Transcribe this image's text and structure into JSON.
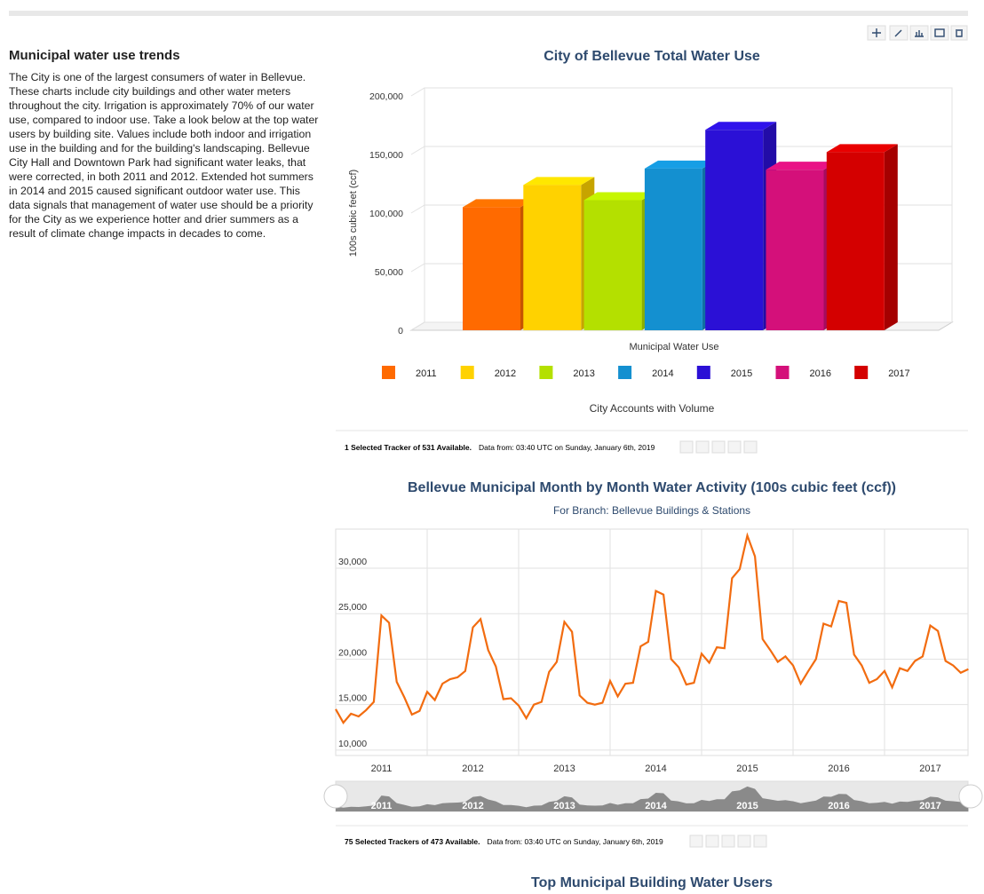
{
  "article": {
    "heading": "Municipal water use trends",
    "paragraph": "The City is one of the largest consumers of water in Bellevue. These charts include city buildings and other water meters throughout the city. Irrigation is approximately 70% of our water use, compared to indoor use. Take a look below at the top water users by building site. Values include both indoor and irrigation use in the building and for the building's landscaping. Bellevue City Hall and Downtown Park had significant water leaks, that were corrected, in both 2011 and 2012. Extended hot summers in 2014 and 2015 caused significant outdoor water use. This data signals that management of water use should be a priority for the City as we experience hotter and drier summers as a result of climate change impacts in decades to come."
  },
  "chart_data": [
    {
      "type": "bar",
      "title": "City of Bellevue Total Water Use",
      "y_label": "100s cubic feet (ccf)",
      "categories": [
        "Municipal Water Use"
      ],
      "caption": "City Accounts with Volume",
      "ylim": [
        0,
        200000
      ],
      "yticks": [
        0,
        {
          "value": 50000,
          "label": "50,000"
        },
        {
          "value": 100000,
          "label": "100,000"
        },
        {
          "value": 150000,
          "label": "150,000"
        },
        {
          "value": 200000,
          "label": "200,000"
        }
      ],
      "grid": true,
      "legend": "bottom",
      "series": [
        {
          "name": "2011",
          "color": "#ff6a00",
          "values": [
            105000
          ]
        },
        {
          "name": "2012",
          "color": "#ffd200",
          "values": [
            124000
          ]
        },
        {
          "name": "2013",
          "color": "#b4e000",
          "values": [
            111000
          ]
        },
        {
          "name": "2014",
          "color": "#1490d0",
          "values": [
            138000
          ]
        },
        {
          "name": "2015",
          "color": "#2b10d6",
          "values": [
            171000
          ]
        },
        {
          "name": "2016",
          "color": "#d4107a",
          "values": [
            137000
          ]
        },
        {
          "name": "2017",
          "color": "#d40000",
          "values": [
            152000
          ]
        }
      ]
    },
    {
      "type": "line",
      "title": "Bellevue Municipal Month by Month Water Activity (100s cubic feet (ccf))",
      "subtitle": "For Branch: Bellevue Buildings & Stations",
      "xticks": [
        2011,
        2012,
        2013,
        2014,
        2015,
        2016,
        2017
      ],
      "ylim": [
        9400,
        34300
      ],
      "yticks": [
        {
          "value": 10000,
          "label": "10,000"
        },
        {
          "value": 15000,
          "label": "15,000"
        },
        {
          "value": 20000,
          "label": "20,000"
        },
        {
          "value": 25000,
          "label": "25,000"
        },
        {
          "value": 30000,
          "label": "30,000"
        }
      ],
      "grid": true,
      "color": "#f26c10",
      "values": [
        14500,
        13000,
        14000,
        13700,
        14400,
        15300,
        24800,
        24000,
        17500,
        15800,
        13900,
        14300,
        16400,
        15500,
        17300,
        17800,
        18000,
        18700,
        23500,
        24400,
        21000,
        19200,
        15600,
        15700,
        14900,
        13500,
        15000,
        15300,
        18600,
        19700,
        24100,
        23000,
        16000,
        15200,
        15000,
        15200,
        17600,
        15900,
        17300,
        17400,
        21400,
        21900,
        27500,
        27100,
        20000,
        19100,
        17200,
        17400,
        20600,
        19600,
        21300,
        21200,
        28900,
        29900,
        33600,
        31300,
        22200,
        21000,
        19700,
        20300,
        19300,
        17300,
        18700,
        20000,
        23900,
        23600,
        26400,
        26200,
        20500,
        19300,
        17400,
        17800,
        18700,
        16900,
        19000,
        18700,
        19800,
        20300,
        23700,
        23100,
        19800,
        19300,
        18500,
        18900
      ]
    }
  ],
  "status": [
    {
      "trackers": "1 Selected Tracker of 531 Available.",
      "date": "Data from: 03:40 UTC on Sunday, January 6th, 2019"
    },
    {
      "trackers": "75 Selected Trackers of 473 Available.",
      "date": "Data from: 03:40 UTC on Sunday, January 6th, 2019"
    }
  ],
  "next_heading": "Top Municipal Building Water Users"
}
